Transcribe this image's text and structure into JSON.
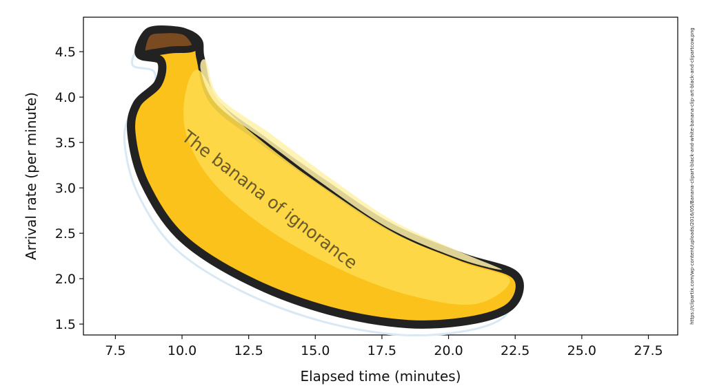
{
  "chart_data": {
    "type": "scatter",
    "title": "",
    "xlabel": "Elapsed time (minutes)",
    "ylabel": "Arrival rate (per minute)",
    "xlim": [
      6.3,
      28.6
    ],
    "ylim": [
      1.38,
      4.88
    ],
    "xticks": [
      "7.5",
      "10.0",
      "12.5",
      "15.0",
      "17.5",
      "20.0",
      "22.5",
      "25.0",
      "27.5"
    ],
    "yticks": [
      "1.5",
      "2.0",
      "2.5",
      "3.0",
      "3.5",
      "4.0",
      "4.5"
    ],
    "grid": false,
    "annotation": "The banana of ignorance",
    "series": [],
    "banana_outline": [
      [
        8.6,
        4.67
      ],
      [
        9.0,
        4.74
      ],
      [
        10.0,
        4.72
      ],
      [
        10.6,
        4.62
      ],
      [
        10.7,
        4.42
      ],
      [
        11.2,
        3.95
      ],
      [
        13.0,
        3.53
      ],
      [
        15.3,
        3.05
      ],
      [
        17.8,
        2.57
      ],
      [
        20.5,
        2.24
      ],
      [
        22.5,
        2.04
      ],
      [
        22.4,
        1.72
      ],
      [
        21.0,
        1.55
      ],
      [
        18.5,
        1.5
      ],
      [
        15.5,
        1.65
      ],
      [
        12.5,
        1.98
      ],
      [
        10.0,
        2.45
      ],
      [
        8.6,
        3.05
      ],
      [
        8.1,
        3.6
      ],
      [
        8.3,
        3.92
      ],
      [
        9.1,
        4.15
      ],
      [
        9.2,
        4.4
      ],
      [
        8.4,
        4.47
      ]
    ],
    "stem_top": [
      [
        8.5,
        4.49
      ],
      [
        8.7,
        4.7
      ],
      [
        9.3,
        4.74
      ],
      [
        10.1,
        4.72
      ],
      [
        10.5,
        4.58
      ],
      [
        10.3,
        4.53
      ],
      [
        9.6,
        4.52
      ],
      [
        8.9,
        4.49
      ]
    ]
  },
  "credit": "https://clipartix.com/wp-content/uploads/2016/05/Banana-clipart-black-and-white-banana-clip-art-black-and-clipartcow.png",
  "colors": {
    "banana_fill": "#fbc21b",
    "banana_highlight": "#fdd94a",
    "banana_shine": "#fff2a8",
    "outline": "#222222",
    "stem": "#7a4a20",
    "shadow": "#d9e8f5"
  }
}
